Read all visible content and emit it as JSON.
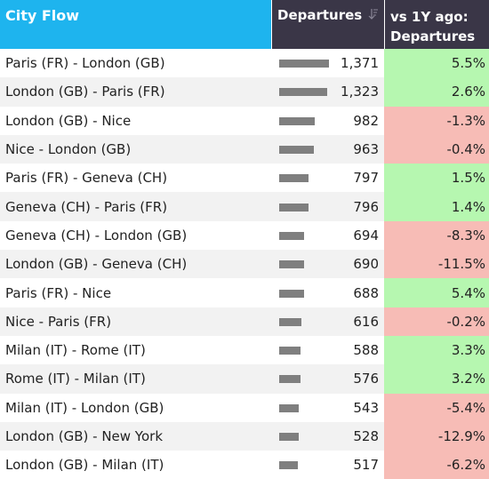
{
  "header": {
    "city_col": "City Flow",
    "departures_col": "Departures",
    "change_col_line1": "vs 1Y ago:",
    "change_col_line2": "Departures"
  },
  "rows": [
    {
      "city": "Paris (FR) - London (GB)",
      "departures": "1,371",
      "value": 1371,
      "change": "5.5%",
      "trend": "pos"
    },
    {
      "city": "London (GB) - Paris (FR)",
      "departures": "1,323",
      "value": 1323,
      "change": "2.6%",
      "trend": "pos"
    },
    {
      "city": "London (GB) - Nice",
      "departures": "982",
      "value": 982,
      "change": "-1.3%",
      "trend": "neg"
    },
    {
      "city": "Nice - London (GB)",
      "departures": "963",
      "value": 963,
      "change": "-0.4%",
      "trend": "neg"
    },
    {
      "city": "Paris (FR) - Geneva (CH)",
      "departures": "797",
      "value": 797,
      "change": "1.5%",
      "trend": "pos"
    },
    {
      "city": "Geneva (CH) - Paris (FR)",
      "departures": "796",
      "value": 796,
      "change": "1.4%",
      "trend": "pos"
    },
    {
      "city": "Geneva (CH) - London (GB)",
      "departures": "694",
      "value": 694,
      "change": "-8.3%",
      "trend": "neg"
    },
    {
      "city": "London (GB) - Geneva (CH)",
      "departures": "690",
      "value": 690,
      "change": "-11.5%",
      "trend": "neg"
    },
    {
      "city": "Paris (FR) - Nice",
      "departures": "688",
      "value": 688,
      "change": "5.4%",
      "trend": "pos"
    },
    {
      "city": "Nice - Paris (FR)",
      "departures": "616",
      "value": 616,
      "change": "-0.2%",
      "trend": "neg"
    },
    {
      "city": "Milan (IT) - Rome (IT)",
      "departures": "588",
      "value": 588,
      "change": "3.3%",
      "trend": "pos"
    },
    {
      "city": "Rome (IT) - Milan (IT)",
      "departures": "576",
      "value": 576,
      "change": "3.2%",
      "trend": "pos"
    },
    {
      "city": "Milan (IT) - London (GB)",
      "departures": "543",
      "value": 543,
      "change": "-5.4%",
      "trend": "neg"
    },
    {
      "city": "London (GB) - New York",
      "departures": "528",
      "value": 528,
      "change": "-12.9%",
      "trend": "neg"
    },
    {
      "city": "London (GB) - Milan (IT)",
      "departures": "517",
      "value": 517,
      "change": "-6.2%",
      "trend": "neg"
    }
  ],
  "colors": {
    "header_city": "#1eb4ee",
    "header_dark": "#3a3647",
    "positive": "#b6f7b0",
    "negative": "#f7bcb6",
    "bar": "#7f7f7f"
  }
}
